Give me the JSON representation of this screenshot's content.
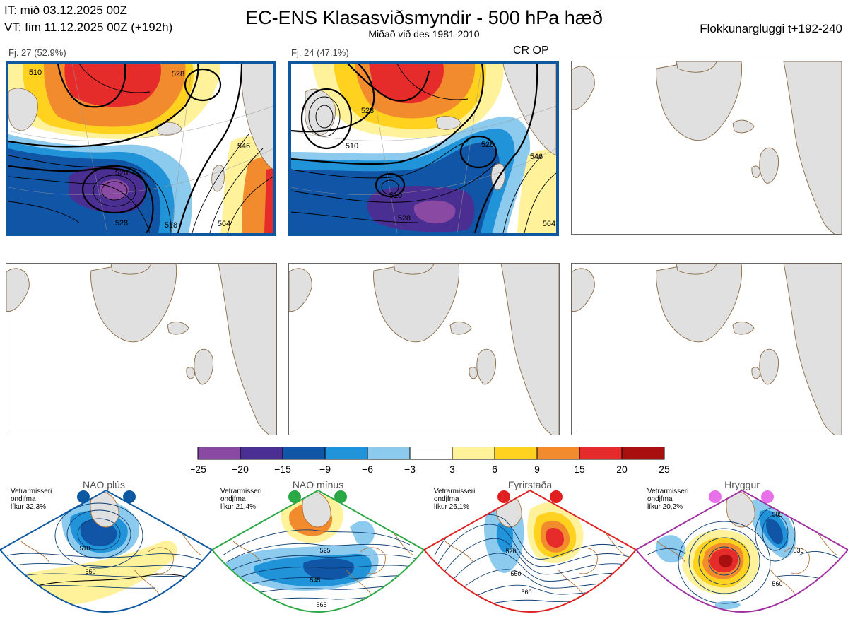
{
  "header": {
    "it_line": "IT: mið 03.12.2025 00Z",
    "vt_line": "VT: fim 11.12.2025 00Z  (+192h)",
    "title": "EC-ENS Klasasviðsmyndir - 500 hPa hæð",
    "subtitle": "Miðað við des 1981-2010",
    "window": "Flokkunargluggi t+192-240"
  },
  "clusters": [
    {
      "label": "Fj. 27 (52.9%)",
      "members": 27,
      "percent": 52.9,
      "contours": [
        "510",
        "520",
        "528",
        "546",
        "564",
        "518",
        "528"
      ]
    },
    {
      "label": "Fj. 24 (47.1%)",
      "members": 24,
      "percent": 47.1,
      "crop": "CR OP",
      "contours": [
        "510",
        "528",
        "510",
        "528",
        "546",
        "564",
        "528"
      ]
    }
  ],
  "colors": {
    "frame": "#0d58a0",
    "land": "#e0e0e0",
    "coast": "#8a6a45",
    "nao_plus": "#0d58a0",
    "nao_minus": "#2aa845",
    "blocking": "#e02020",
    "ridge": "#a030a0"
  },
  "chart_data": {
    "type": "heatmap",
    "title": "EC-ENS Klasasviðsmyndir - 500 hPa hæð",
    "colorbar": {
      "ticks": [
        "−25",
        "−20",
        "−15",
        "−9",
        "−6",
        "−3",
        "3",
        "6",
        "9",
        "15",
        "20",
        "25"
      ],
      "colors": [
        "#8a4aa3",
        "#4a2e92",
        "#1155a6",
        "#2193d9",
        "#8ccaee",
        "#ffffff",
        "#fff29a",
        "#ffd21f",
        "#f28a2e",
        "#e62b2b",
        "#a8100f"
      ]
    },
    "regimes": [
      {
        "name": "NAO plús",
        "stats": [
          "Vetrarmisseri",
          "ondjfma",
          "líkur 32,3%"
        ],
        "probability": 32.3,
        "contours": [
          "510",
          "550"
        ]
      },
      {
        "name": "NAO mínus",
        "stats": [
          "Vetrarmisseri",
          "ondjfma",
          "líkur 21,4%"
        ],
        "probability": 21.4,
        "contours": [
          "525",
          "545",
          "565"
        ]
      },
      {
        "name": "Fyrirstaða",
        "stats": [
          "Vetrarmisseri",
          "ondjfma",
          "líkur 26,1%"
        ],
        "probability": 26.1,
        "contours": [
          "520",
          "550",
          "560"
        ]
      },
      {
        "name": "Hryggur",
        "stats": [
          "Vetrarmisseri",
          "ondjfma",
          "líkur 20,2%"
        ],
        "probability": 20.2,
        "contours": [
          "505",
          "535",
          "560"
        ]
      }
    ]
  }
}
